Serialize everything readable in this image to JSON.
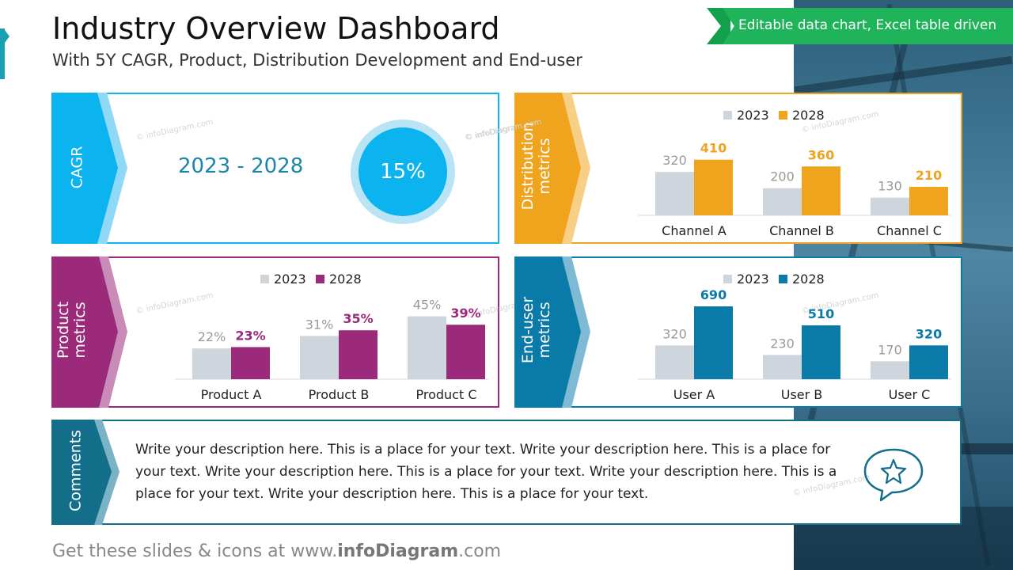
{
  "header": {
    "title": "Industry Overview Dashboard",
    "subtitle": "With 5Y CAGR, Product, Distribution Development and End-user",
    "ribbon": "Editable data chart, Excel table driven"
  },
  "watermark": "© infoDiagram.com",
  "cagr": {
    "tab_label": "CAGR",
    "range": "2023 - 2028",
    "value": "15%",
    "color": "#0bb3ef"
  },
  "distribution": {
    "tab_label_1": "Distribution",
    "tab_label_2": "metrics",
    "color": "#f0a31c"
  },
  "product": {
    "tab_label_1": "Product",
    "tab_label_2": "metrics",
    "color": "#9b2a7a"
  },
  "enduser": {
    "tab_label_1": "End-user",
    "tab_label_2": "metrics",
    "color": "#0a7aa8"
  },
  "comments": {
    "tab_label": "Comments",
    "text": "Write your description here. This is a place for your text. Write your description here. This is a place for your text. Write your description here. This is a place for your text. Write your description here. This is a place for your text. Write your description here. This is a place for your text.",
    "icon": "star-speech-bubble-icon",
    "color": "#136e8a"
  },
  "footer": {
    "prefix": "Get these slides & icons at www.",
    "brand": "infoDiagram",
    "suffix": ".com"
  },
  "chart_data": [
    {
      "id": "distribution",
      "type": "bar",
      "title": "Distribution metrics",
      "categories": [
        "Channel A",
        "Channel B",
        "Channel C"
      ],
      "series": [
        {
          "name": "2023",
          "values": [
            320,
            200,
            130
          ],
          "color": "#cfd5dc"
        },
        {
          "name": "2028",
          "values": [
            410,
            360,
            210
          ],
          "color": "#f0a31c"
        }
      ],
      "labels": [
        [
          "320",
          "200",
          "130"
        ],
        [
          "410",
          "360",
          "210"
        ]
      ],
      "ylim": [
        0,
        700
      ]
    },
    {
      "id": "product",
      "type": "bar",
      "title": "Product metrics",
      "categories": [
        "Product A",
        "Product B",
        "Product C"
      ],
      "series": [
        {
          "name": "2023",
          "values": [
            22,
            31,
            45
          ],
          "color": "#cfd5dc"
        },
        {
          "name": "2028",
          "values": [
            23,
            35,
            39
          ],
          "color": "#9b2a7a"
        }
      ],
      "labels": [
        [
          "22%",
          "31%",
          "45%"
        ],
        [
          "23%",
          "35%",
          "39%"
        ]
      ],
      "ylim": [
        0,
        68
      ]
    },
    {
      "id": "enduser",
      "type": "bar",
      "title": "End-user metrics",
      "categories": [
        "User A",
        "User B",
        "User C"
      ],
      "series": [
        {
          "name": "2023",
          "values": [
            320,
            230,
            170
          ],
          "color": "#cfd5dc"
        },
        {
          "name": "2028",
          "values": [
            690,
            510,
            320
          ],
          "color": "#0a7aa8"
        }
      ],
      "labels": [
        [
          "320",
          "230",
          "170"
        ],
        [
          "690",
          "510",
          "320"
        ]
      ],
      "ylim": [
        0,
        900
      ]
    }
  ]
}
